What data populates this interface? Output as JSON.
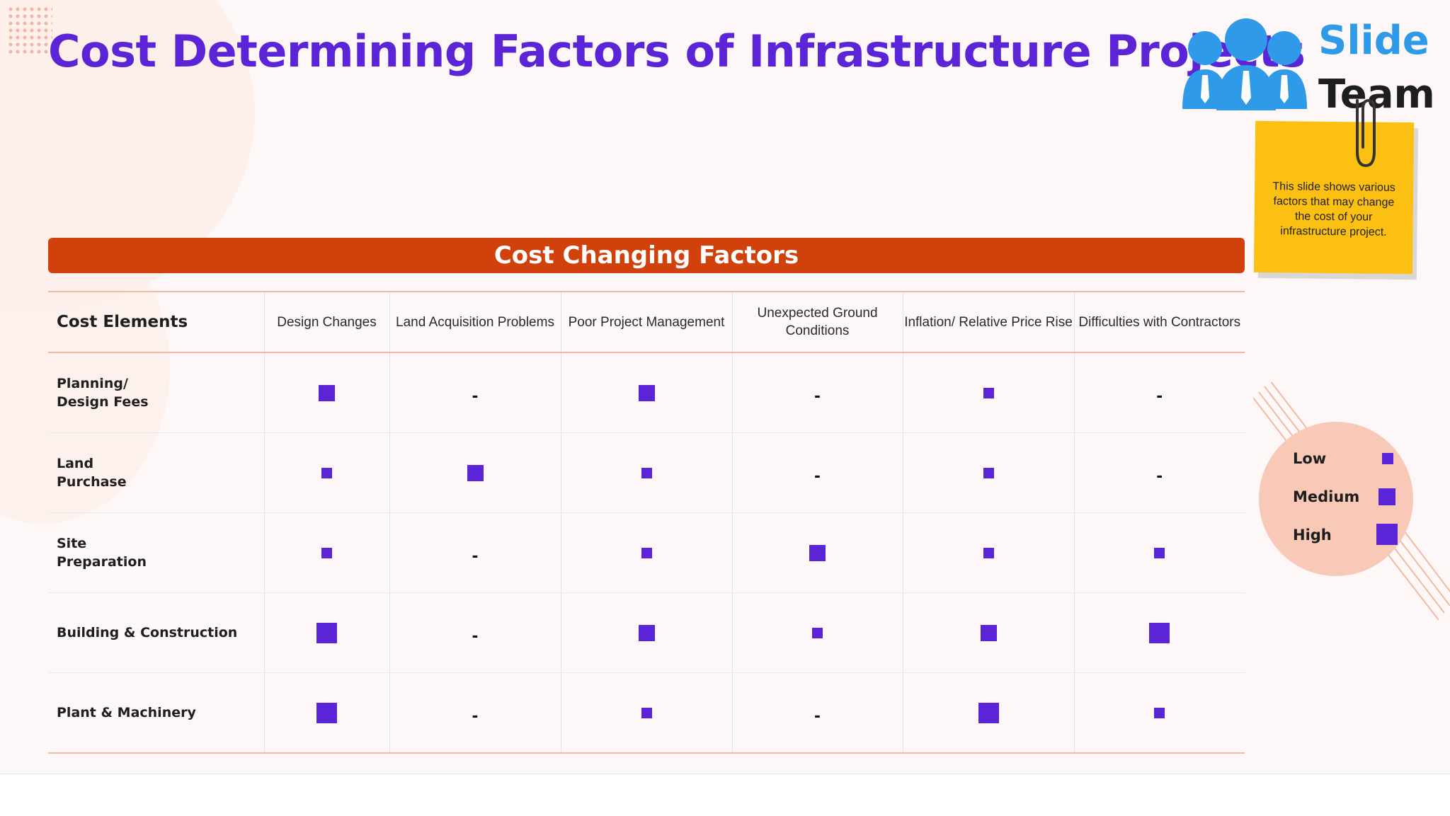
{
  "title": "Cost Determining Factors of Infrastructure Projects",
  "logo": {
    "word1": "Slide",
    "word2": "Team"
  },
  "note": "This slide shows various factors that may change the cost of your infrastructure project.",
  "band_title": "Cost Changing Factors",
  "table": {
    "corner_header": "Cost Elements",
    "columns": [
      "Design Changes",
      "Land Acquisition Problems",
      "Poor Project Management",
      "Unexpected Ground Conditions",
      "Inflation/ Relative Price Rise",
      "Difficulties with Contractors"
    ],
    "rows": [
      {
        "label": "Planning/\nDesign Fees",
        "levels": [
          "medium",
          "none",
          "medium",
          "none",
          "low",
          "none"
        ]
      },
      {
        "label": "Land\nPurchase",
        "levels": [
          "low",
          "medium",
          "low",
          "none",
          "low",
          "none"
        ]
      },
      {
        "label": "Site\nPreparation",
        "levels": [
          "low",
          "none",
          "low",
          "medium",
          "low",
          "low"
        ]
      },
      {
        "label": "Building & Construction",
        "levels": [
          "high",
          "none",
          "medium",
          "low",
          "medium",
          "high"
        ]
      },
      {
        "label": "Plant & Machinery",
        "levels": [
          "high",
          "none",
          "low",
          "none",
          "high",
          "low"
        ]
      }
    ],
    "none_symbol": "-"
  },
  "legend": {
    "low": "Low",
    "medium": "Medium",
    "high": "High"
  },
  "colors": {
    "title": "#5b24d6",
    "band": "#d1410c",
    "mark": "#5b24d6",
    "note": "#fcc012",
    "legend_bg": "#f9c9b7",
    "logo_blue": "#2f9be8"
  }
}
